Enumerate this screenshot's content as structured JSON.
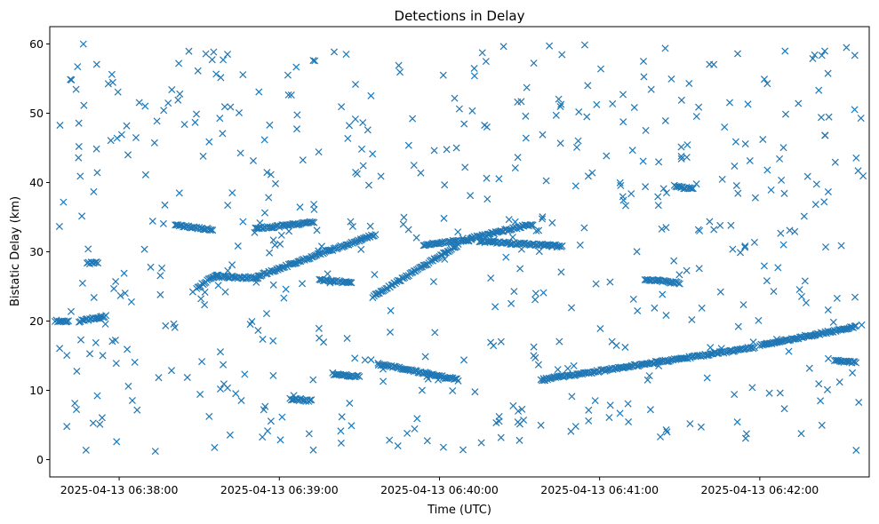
{
  "chart_data": {
    "type": "scatter",
    "title": "Detections in Delay",
    "xlabel": "Time (UTC)",
    "ylabel": "Bistatic Delay (km)",
    "marker": "x",
    "color": "#1f77b4",
    "xlim": [
      "2025-04-13 06:37:34",
      "2025-04-13 06:42:41"
    ],
    "ylim": [
      -2.5,
      62.5
    ],
    "x_ticks": [
      "2025-04-13 06:38:00",
      "2025-04-13 06:39:00",
      "2025-04-13 06:40:00",
      "2025-04-13 06:41:00",
      "2025-04-13 06:42:00"
    ],
    "y_ticks": [
      0,
      10,
      20,
      30,
      40,
      50,
      60
    ],
    "grid": false,
    "tracks": [
      {
        "t_start": "2025-04-13 06:37:36",
        "t_end": "2025-04-13 06:37:41",
        "y_start": 20.0,
        "y_end": 20.0
      },
      {
        "t_start": "2025-04-13 06:37:45",
        "t_end": "2025-04-13 06:37:55",
        "y_start": 20.0,
        "y_end": 20.7
      },
      {
        "t_start": "2025-04-13 06:37:48",
        "t_end": "2025-04-13 06:37:52",
        "y_start": 28.3,
        "y_end": 28.5
      },
      {
        "t_start": "2025-04-13 06:38:21",
        "t_end": "2025-04-13 06:38:35",
        "y_start": 33.8,
        "y_end": 33.2
      },
      {
        "t_start": "2025-04-13 06:38:29",
        "t_end": "2025-04-13 06:38:37",
        "y_start": 24.8,
        "y_end": 26.8
      },
      {
        "t_start": "2025-04-13 06:38:36",
        "t_end": "2025-04-13 06:38:52",
        "y_start": 26.4,
        "y_end": 26.2
      },
      {
        "t_start": "2025-04-13 06:38:52",
        "t_end": "2025-04-13 06:39:36",
        "y_start": 26.5,
        "y_end": 32.5
      },
      {
        "t_start": "2025-04-13 06:38:51",
        "t_end": "2025-04-13 06:39:13",
        "y_start": 33.3,
        "y_end": 34.3
      },
      {
        "t_start": "2025-04-13 06:39:04",
        "t_end": "2025-04-13 06:39:12",
        "y_start": 8.7,
        "y_end": 8.5
      },
      {
        "t_start": "2025-04-13 06:39:15",
        "t_end": "2025-04-13 06:39:27",
        "y_start": 26.0,
        "y_end": 25.5
      },
      {
        "t_start": "2025-04-13 06:39:20",
        "t_end": "2025-04-13 06:39:30",
        "y_start": 12.4,
        "y_end": 12.0
      },
      {
        "t_start": "2025-04-13 06:39:35",
        "t_end": "2025-04-13 06:40:07",
        "y_start": 23.5,
        "y_end": 31.0
      },
      {
        "t_start": "2025-04-13 06:39:37",
        "t_end": "2025-04-13 06:40:07",
        "y_start": 13.8,
        "y_end": 11.5
      },
      {
        "t_start": "2025-04-13 06:39:54",
        "t_end": "2025-04-13 06:40:12",
        "y_start": 31.0,
        "y_end": 31.8
      },
      {
        "t_start": "2025-04-13 06:40:12",
        "t_end": "2025-04-13 06:40:35",
        "y_start": 32.0,
        "y_end": 34.0
      },
      {
        "t_start": "2025-04-13 06:40:15",
        "t_end": "2025-04-13 06:40:46",
        "y_start": 31.5,
        "y_end": 30.8
      },
      {
        "t_start": "2025-04-13 06:40:38",
        "t_end": "2025-04-13 06:41:58",
        "y_start": 11.5,
        "y_end": 16.2
      },
      {
        "t_start": "2025-04-13 06:41:17",
        "t_end": "2025-04-13 06:41:30",
        "y_start": 26.0,
        "y_end": 25.5
      },
      {
        "t_start": "2025-04-13 06:41:28",
        "t_end": "2025-04-13 06:41:35",
        "y_start": 39.5,
        "y_end": 39.0
      },
      {
        "t_start": "2025-04-13 06:42:00",
        "t_end": "2025-04-13 06:42:36",
        "y_start": 16.5,
        "y_end": 19.2
      },
      {
        "t_start": "2025-04-13 06:42:28",
        "t_end": "2025-04-13 06:42:36",
        "y_start": 14.3,
        "y_end": 14.0
      }
    ],
    "clutter_count": 560
  }
}
